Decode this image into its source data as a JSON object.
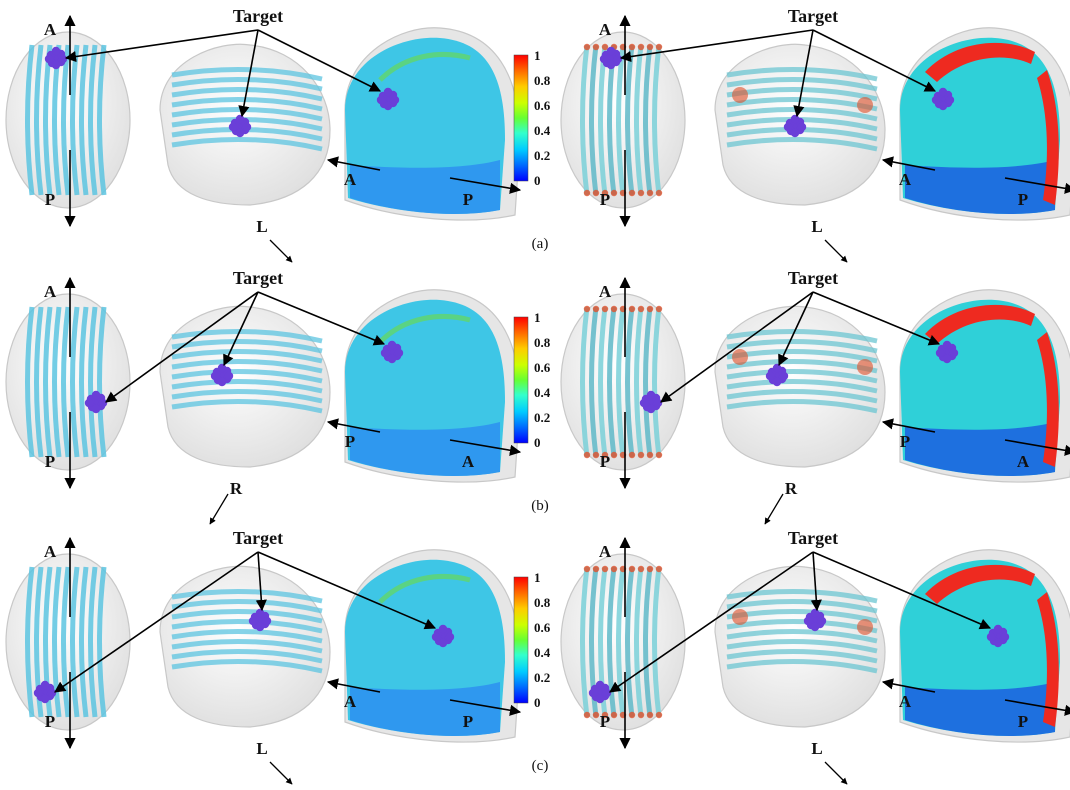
{
  "figure": {
    "colorbar": {
      "ticks": [
        "1",
        "0.8",
        "0.6",
        "0.4",
        "0.2",
        "0"
      ],
      "colors": [
        "#0000ff",
        "#0066ff",
        "#00ccff",
        "#33ffcc",
        "#66ff33",
        "#ccff00",
        "#ffcc00",
        "#ff6600",
        "#ff0000"
      ]
    },
    "rows": [
      {
        "caption": "(a)",
        "groups": [
          {
            "target_label": "Target",
            "top_view": {
              "top": "A",
              "bottom": "P"
            },
            "oblique_axis": "L",
            "side_view": {
              "left": "A",
              "right": "P"
            }
          },
          {
            "target_label": "Target",
            "top_view": {
              "top": "A",
              "bottom": "P"
            },
            "oblique_axis": "L",
            "side_view": {
              "left": "A",
              "right": "P"
            }
          }
        ]
      },
      {
        "caption": "(b)",
        "groups": [
          {
            "target_label": "Target",
            "top_view": {
              "top": "A",
              "bottom": "P"
            },
            "oblique_axis": "R",
            "side_view": {
              "left": "P",
              "right": "A"
            }
          },
          {
            "target_label": "Target",
            "top_view": {
              "top": "A",
              "bottom": "P"
            },
            "oblique_axis": "R",
            "side_view": {
              "left": "P",
              "right": "A"
            }
          }
        ]
      },
      {
        "caption": "(c)",
        "groups": [
          {
            "target_label": "Target",
            "top_view": {
              "top": "A",
              "bottom": "P"
            },
            "oblique_axis": "L",
            "side_view": {
              "left": "A",
              "right": "P"
            }
          },
          {
            "target_label": "Target",
            "top_view": {
              "top": "A",
              "bottom": "P"
            },
            "oblique_axis": "L",
            "side_view": {
              "left": "A",
              "right": "P"
            }
          }
        ]
      }
    ]
  }
}
